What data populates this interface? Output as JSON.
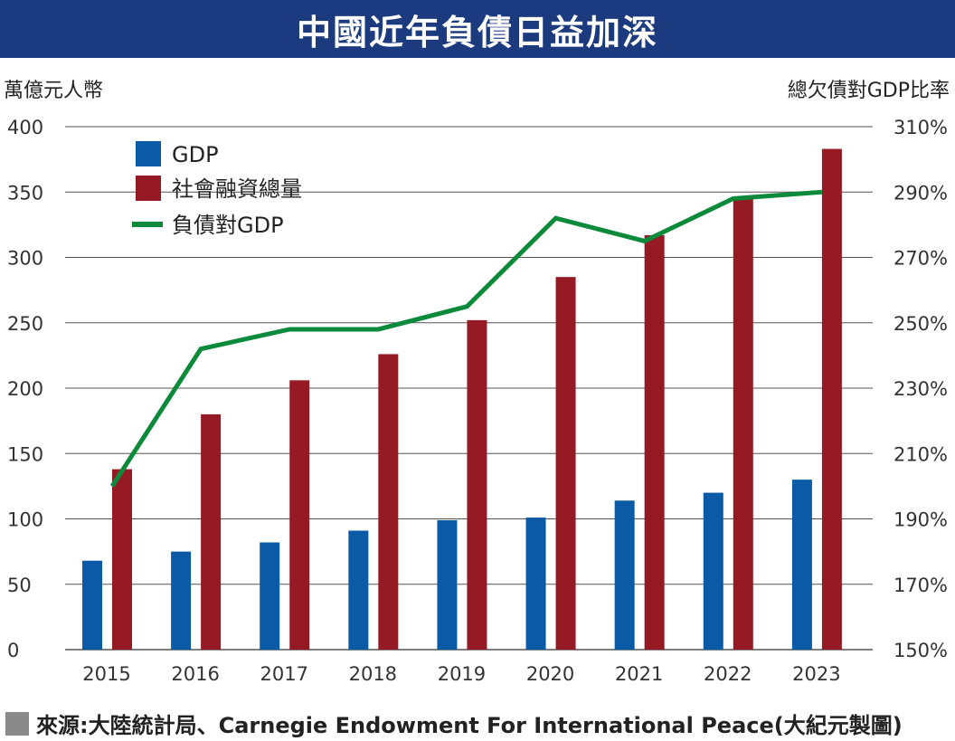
{
  "header": {
    "title": "中國近年負債日益加深"
  },
  "footer": {
    "source": "來源:大陸統計局、Carnegie Endowment For International Peace(大紀元製圖)"
  },
  "colors": {
    "gdp": "#0b5aa5",
    "tsf": "#951a24",
    "ratio": "#0c8a3c",
    "title_bg": "#1c3a7e",
    "grid": "#555555"
  },
  "chart_data": {
    "type": "bar",
    "title": "中國近年負債日益加深",
    "categories": [
      "2015",
      "2016",
      "2017",
      "2018",
      "2019",
      "2020",
      "2021",
      "2022",
      "2023"
    ],
    "ylabel": "萬億元人幣",
    "y2label": "總欠債對GDP比率",
    "ylim": [
      0,
      400
    ],
    "y2lim": [
      150,
      310
    ],
    "yticks": [
      "0",
      "50",
      "100",
      "150",
      "200",
      "250",
      "300",
      "350",
      "400"
    ],
    "y2ticks": [
      "150%",
      "170%",
      "190%",
      "210%",
      "230%",
      "250%",
      "270%",
      "290%",
      "310%"
    ],
    "grid": true,
    "legend": "top-left",
    "series": [
      {
        "name": "GDP",
        "type": "bar",
        "axis": "left",
        "values": [
          68,
          75,
          82,
          91,
          99,
          101,
          114,
          120,
          130
        ]
      },
      {
        "name": "社會融資總量",
        "type": "bar",
        "axis": "left",
        "values": [
          138,
          180,
          206,
          226,
          252,
          285,
          317,
          345,
          383
        ]
      },
      {
        "name": "負債對GDP",
        "type": "line",
        "axis": "right",
        "values": [
          200,
          242,
          248,
          248,
          255,
          282,
          275,
          288,
          290
        ]
      }
    ]
  }
}
